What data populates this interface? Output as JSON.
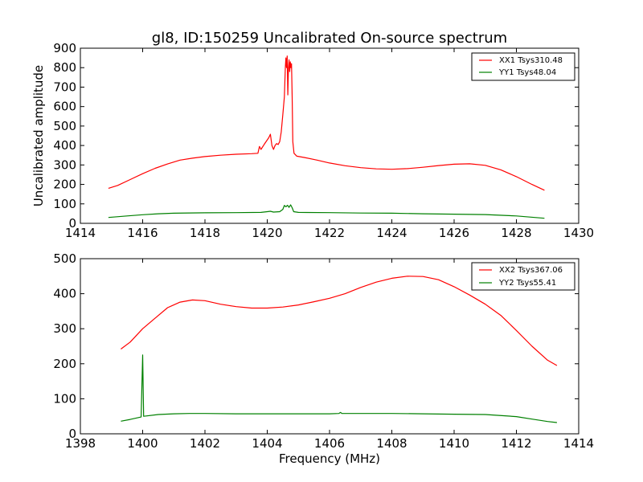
{
  "figure_title": "gl8, ID:150259 Uncalibrated On-source spectrum",
  "chart_data": [
    {
      "type": "line",
      "title": "gl8, ID:150259 Uncalibrated On-source spectrum",
      "xlabel": "",
      "ylabel": "Uncalibrated amplitude",
      "xlim": [
        1414,
        1430
      ],
      "ylim": [
        0,
        900
      ],
      "xticks": [
        "1414",
        "1416",
        "1418",
        "1420",
        "1422",
        "1424",
        "1426",
        "1428",
        "1430"
      ],
      "yticks": [
        "0",
        "100",
        "200",
        "300",
        "400",
        "500",
        "600",
        "700",
        "800",
        "900"
      ],
      "legend_position": "top-right",
      "series": [
        {
          "name": "XX1 Tsys310.48",
          "color": "#ff0000",
          "points": [
            [
              1414.9,
              180
            ],
            [
              1415.2,
              195
            ],
            [
              1415.6,
              225
            ],
            [
              1416.0,
              255
            ],
            [
              1416.4,
              283
            ],
            [
              1416.8,
              305
            ],
            [
              1417.2,
              325
            ],
            [
              1417.6,
              335
            ],
            [
              1418.0,
              343
            ],
            [
              1418.5,
              350
            ],
            [
              1419.0,
              355
            ],
            [
              1419.5,
              358
            ],
            [
              1419.7,
              360
            ],
            [
              1419.75,
              395
            ],
            [
              1419.8,
              380
            ],
            [
              1419.9,
              405
            ],
            [
              1420.05,
              440
            ],
            [
              1420.1,
              458
            ],
            [
              1420.15,
              400
            ],
            [
              1420.2,
              380
            ],
            [
              1420.25,
              400
            ],
            [
              1420.3,
              410
            ],
            [
              1420.35,
              405
            ],
            [
              1420.4,
              420
            ],
            [
              1420.45,
              470
            ],
            [
              1420.5,
              560
            ],
            [
              1420.55,
              650
            ],
            [
              1420.58,
              800
            ],
            [
              1420.6,
              850
            ],
            [
              1420.62,
              800
            ],
            [
              1420.64,
              860
            ],
            [
              1420.66,
              660
            ],
            [
              1420.68,
              800
            ],
            [
              1420.7,
              840
            ],
            [
              1420.72,
              780
            ],
            [
              1420.74,
              830
            ],
            [
              1420.76,
              800
            ],
            [
              1420.78,
              820
            ],
            [
              1420.8,
              650
            ],
            [
              1420.82,
              420
            ],
            [
              1420.86,
              360
            ],
            [
              1420.95,
              345
            ],
            [
              1421.2,
              338
            ],
            [
              1421.6,
              325
            ],
            [
              1422.0,
              310
            ],
            [
              1422.5,
              296
            ],
            [
              1423.0,
              286
            ],
            [
              1423.5,
              280
            ],
            [
              1424.0,
              278
            ],
            [
              1424.5,
              281
            ],
            [
              1425.0,
              288
            ],
            [
              1425.5,
              297
            ],
            [
              1426.0,
              304
            ],
            [
              1426.5,
              306
            ],
            [
              1427.0,
              298
            ],
            [
              1427.5,
              275
            ],
            [
              1428.0,
              240
            ],
            [
              1428.5,
              200
            ],
            [
              1428.9,
              170
            ]
          ]
        },
        {
          "name": "YY1 Tsys48.04",
          "color": "#008000",
          "points": [
            [
              1414.9,
              30
            ],
            [
              1415.5,
              38
            ],
            [
              1416.0,
              44
            ],
            [
              1416.5,
              49
            ],
            [
              1417.0,
              52
            ],
            [
              1418.0,
              54
            ],
            [
              1419.0,
              55
            ],
            [
              1419.8,
              56
            ],
            [
              1420.0,
              60
            ],
            [
              1420.1,
              62
            ],
            [
              1420.2,
              58
            ],
            [
              1420.4,
              60
            ],
            [
              1420.5,
              72
            ],
            [
              1420.55,
              92
            ],
            [
              1420.6,
              85
            ],
            [
              1420.65,
              93
            ],
            [
              1420.7,
              82
            ],
            [
              1420.75,
              95
            ],
            [
              1420.8,
              80
            ],
            [
              1420.85,
              60
            ],
            [
              1421.0,
              56
            ],
            [
              1422.0,
              55
            ],
            [
              1423.0,
              53
            ],
            [
              1424.0,
              52
            ],
            [
              1425.0,
              49
            ],
            [
              1426.0,
              47
            ],
            [
              1427.0,
              45
            ],
            [
              1428.0,
              38
            ],
            [
              1428.9,
              26
            ]
          ]
        }
      ]
    },
    {
      "type": "line",
      "title": "",
      "xlabel": "Frequency (MHz)",
      "ylabel": "",
      "xlim": [
        1398,
        1414
      ],
      "ylim": [
        0,
        500
      ],
      "xticks": [
        "1398",
        "1400",
        "1402",
        "1404",
        "1406",
        "1408",
        "1410",
        "1412",
        "1414"
      ],
      "yticks": [
        "0",
        "100",
        "200",
        "300",
        "400",
        "500"
      ],
      "legend_position": "top-right",
      "series": [
        {
          "name": "XX2 Tsys367.06",
          "color": "#ff0000",
          "points": [
            [
              1399.3,
              242
            ],
            [
              1399.6,
              262
            ],
            [
              1400.0,
              300
            ],
            [
              1400.4,
              330
            ],
            [
              1400.8,
              360
            ],
            [
              1401.2,
              376
            ],
            [
              1401.6,
              382
            ],
            [
              1402.0,
              380
            ],
            [
              1402.5,
              370
            ],
            [
              1403.0,
              363
            ],
            [
              1403.5,
              359
            ],
            [
              1404.0,
              359
            ],
            [
              1404.5,
              362
            ],
            [
              1405.0,
              368
            ],
            [
              1405.5,
              377
            ],
            [
              1406.0,
              387
            ],
            [
              1406.5,
              400
            ],
            [
              1407.0,
              418
            ],
            [
              1407.5,
              433
            ],
            [
              1408.0,
              444
            ],
            [
              1408.5,
              450
            ],
            [
              1409.0,
              449
            ],
            [
              1409.5,
              440
            ],
            [
              1410.0,
              420
            ],
            [
              1410.5,
              396
            ],
            [
              1411.0,
              370
            ],
            [
              1411.5,
              338
            ],
            [
              1412.0,
              295
            ],
            [
              1412.5,
              250
            ],
            [
              1413.0,
              210
            ],
            [
              1413.3,
              195
            ]
          ]
        },
        {
          "name": "YY2 Tsys55.41",
          "color": "#008000",
          "points": [
            [
              1399.3,
              36
            ],
            [
              1399.6,
              41
            ],
            [
              1399.95,
              48
            ],
            [
              1400.0,
              225
            ],
            [
              1400.03,
              50
            ],
            [
              1400.5,
              55
            ],
            [
              1401.0,
              57
            ],
            [
              1401.5,
              58
            ],
            [
              1402.0,
              58
            ],
            [
              1403.0,
              57
            ],
            [
              1404.0,
              57
            ],
            [
              1405.0,
              57
            ],
            [
              1406.0,
              57
            ],
            [
              1406.3,
              58
            ],
            [
              1406.35,
              61
            ],
            [
              1406.4,
              58
            ],
            [
              1407.0,
              58
            ],
            [
              1408.0,
              58
            ],
            [
              1409.0,
              57
            ],
            [
              1410.0,
              56
            ],
            [
              1411.0,
              55
            ],
            [
              1412.0,
              49
            ],
            [
              1412.5,
              42
            ],
            [
              1413.0,
              35
            ],
            [
              1413.3,
              32
            ]
          ]
        }
      ]
    }
  ]
}
